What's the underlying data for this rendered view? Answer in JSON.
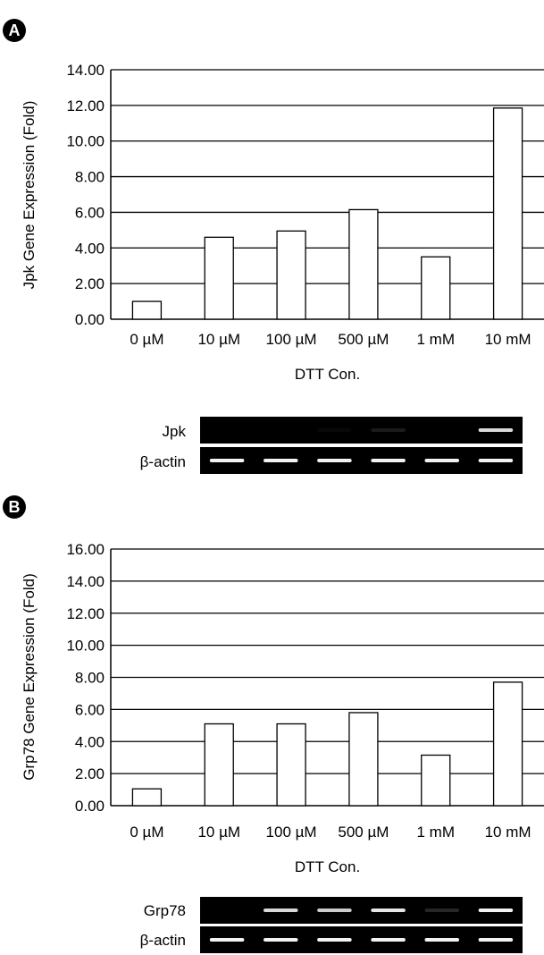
{
  "panels": [
    {
      "letter": "A",
      "gel": {
        "labels": [
          "Jpk",
          "β-actin"
        ]
      }
    },
    {
      "letter": "B",
      "gel": {
        "labels": [
          "Grp78",
          "β-actin"
        ]
      }
    }
  ],
  "colors": {
    "bar_fill": "#ffffff",
    "bar_stroke": "#000000",
    "gel_bg": "#000000",
    "gel_band": "#ffffff"
  },
  "chart_data": [
    {
      "type": "bar",
      "title": "",
      "xlabel": "DTT Con.",
      "ylabel": "Jpk Gene Expression (Fold)",
      "categories": [
        "0 µM",
        "10 µM",
        "100 µM",
        "500 µM",
        "1 mM",
        "10 mM"
      ],
      "values": [
        1.0,
        4.6,
        4.95,
        6.15,
        3.5,
        11.85
      ],
      "ylim": [
        0,
        14
      ],
      "yticks": [
        "0.00",
        "2.00",
        "4.00",
        "6.00",
        "8.00",
        "10.00",
        "12.00",
        "14.00"
      ],
      "grid": true,
      "legend": "none",
      "gel_bands": [
        {
          "name": "Jpk",
          "intensity": [
            0.0,
            0.0,
            0.03,
            0.1,
            0.0,
            0.85
          ]
        },
        {
          "name": "β-actin",
          "intensity": [
            0.95,
            0.95,
            0.95,
            0.95,
            0.95,
            0.95
          ]
        }
      ]
    },
    {
      "type": "bar",
      "title": "",
      "xlabel": "DTT Con.",
      "ylabel": "Grp78 Gene Expression (Fold)",
      "categories": [
        "0 µM",
        "10 µM",
        "100 µM",
        "500 µM",
        "1 mM",
        "10 mM"
      ],
      "values": [
        1.05,
        5.1,
        5.1,
        5.8,
        3.15,
        7.7
      ],
      "ylim": [
        0,
        16
      ],
      "yticks": [
        "0.00",
        "2.00",
        "4.00",
        "6.00",
        "8.00",
        "10.00",
        "12.00",
        "14.00",
        "16.00"
      ],
      "grid": true,
      "legend": "none",
      "gel_bands": [
        {
          "name": "Grp78",
          "intensity": [
            0.0,
            0.85,
            0.8,
            0.9,
            0.15,
            0.95
          ]
        },
        {
          "name": "β-actin",
          "intensity": [
            0.95,
            0.95,
            0.95,
            0.95,
            0.95,
            0.95
          ]
        }
      ]
    }
  ]
}
